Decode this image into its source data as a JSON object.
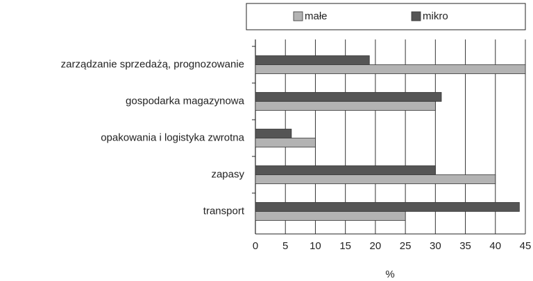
{
  "chart_data": {
    "type": "hbar",
    "categories": [
      "zarządzanie sprzedażą, prognozowanie",
      "gospodarka magazynowa",
      "opakowania i logistyka zwrotna",
      "zapasy",
      "transport"
    ],
    "series": [
      {
        "name": "małe",
        "color": "#b3b3b3",
        "values": [
          45,
          30,
          10,
          40,
          25
        ]
      },
      {
        "name": "mikro",
        "color": "#555555",
        "values": [
          19,
          31,
          6,
          30,
          44
        ]
      }
    ],
    "xlabel": "%",
    "xlim": [
      0,
      45
    ],
    "xticks": [
      0,
      5,
      10,
      15,
      20,
      25,
      30,
      35,
      40,
      45
    ],
    "grid": true,
    "legend": "top"
  }
}
